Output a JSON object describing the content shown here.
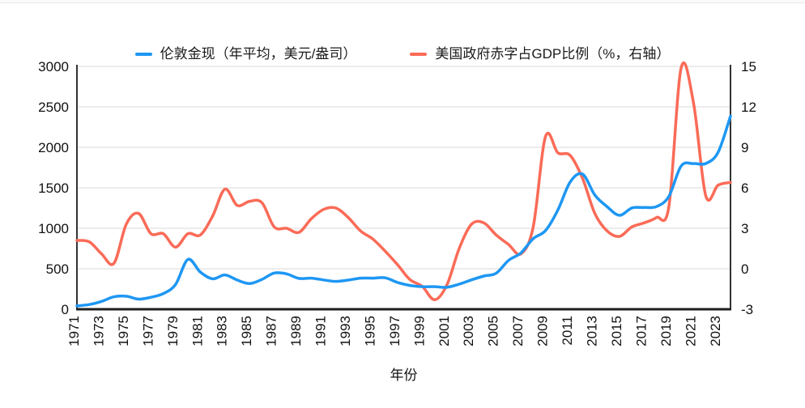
{
  "legend": {
    "items": [
      {
        "label": "伦敦金现（年平均，美元/盎司）",
        "color": "#1E97F3"
      },
      {
        "label": "美国政府赤字占GDP比例（%，右轴）",
        "color": "#FA6B57"
      }
    ]
  },
  "chart_data": {
    "type": "line",
    "title": "",
    "xlabel": "年份",
    "grid": true,
    "legend_position": "top",
    "x": [
      1971,
      1972,
      1973,
      1974,
      1975,
      1976,
      1977,
      1978,
      1979,
      1980,
      1981,
      1982,
      1983,
      1984,
      1985,
      1986,
      1987,
      1988,
      1989,
      1990,
      1991,
      1992,
      1993,
      1994,
      1995,
      1996,
      1997,
      1998,
      1999,
      2000,
      2001,
      2002,
      2003,
      2004,
      2005,
      2006,
      2007,
      2008,
      2009,
      2010,
      2011,
      2012,
      2013,
      2014,
      2015,
      2016,
      2017,
      2018,
      2019,
      2020,
      2021,
      2022,
      2023,
      2024
    ],
    "x_tick_years": [
      1971,
      1973,
      1975,
      1977,
      1979,
      1981,
      1983,
      1985,
      1987,
      1989,
      1991,
      1993,
      1995,
      1997,
      1999,
      2001,
      2003,
      2005,
      2007,
      2009,
      2011,
      2013,
      2015,
      2017,
      2019,
      2021,
      2023
    ],
    "left_axis": {
      "min": 0,
      "max": 3000,
      "ticks": [
        0,
        500,
        1000,
        1500,
        2000,
        2500,
        3000
      ]
    },
    "right_axis": {
      "min": -3,
      "max": 15,
      "ticks": [
        -3,
        0,
        3,
        6,
        9,
        12,
        15
      ]
    },
    "series": [
      {
        "name": "伦敦金现（年平均，美元/盎司）",
        "axis": "left",
        "color": "#1E97F3",
        "smooth": true,
        "values": [
          41,
          58,
          97,
          154,
          161,
          125,
          148,
          193,
          306,
          615,
          460,
          376,
          424,
          361,
          317,
          368,
          447,
          437,
          381,
          384,
          362,
          344,
          360,
          384,
          384,
          388,
          331,
          294,
          279,
          279,
          271,
          310,
          363,
          410,
          445,
          603,
          695,
          872,
          972,
          1225,
          1572,
          1669,
          1411,
          1266,
          1160,
          1251,
          1257,
          1268,
          1393,
          1770,
          1799,
          1800,
          1941,
          2386
        ]
      },
      {
        "name": "美国政府赤字占GDP比例（%，右轴）",
        "axis": "right",
        "color": "#FA6B57",
        "smooth": true,
        "values": [
          2.1,
          2.0,
          1.1,
          0.4,
          3.3,
          4.1,
          2.6,
          2.6,
          1.6,
          2.6,
          2.5,
          3.9,
          5.9,
          4.7,
          5.0,
          4.9,
          3.1,
          3.0,
          2.7,
          3.7,
          4.4,
          4.5,
          3.8,
          2.8,
          2.2,
          1.3,
          0.3,
          -0.8,
          -1.3,
          -2.3,
          -1.2,
          1.5,
          3.3,
          3.4,
          2.5,
          1.8,
          1.1,
          3.1,
          9.8,
          8.6,
          8.4,
          6.7,
          4.1,
          2.8,
          2.4,
          3.1,
          3.4,
          3.8,
          4.6,
          14.9,
          12.3,
          5.4,
          6.2,
          6.4
        ]
      }
    ]
  },
  "colors": {
    "background": "#ffffff",
    "grid": "#d9d9d9",
    "axis": "#333333",
    "tick_text": "#111111"
  }
}
